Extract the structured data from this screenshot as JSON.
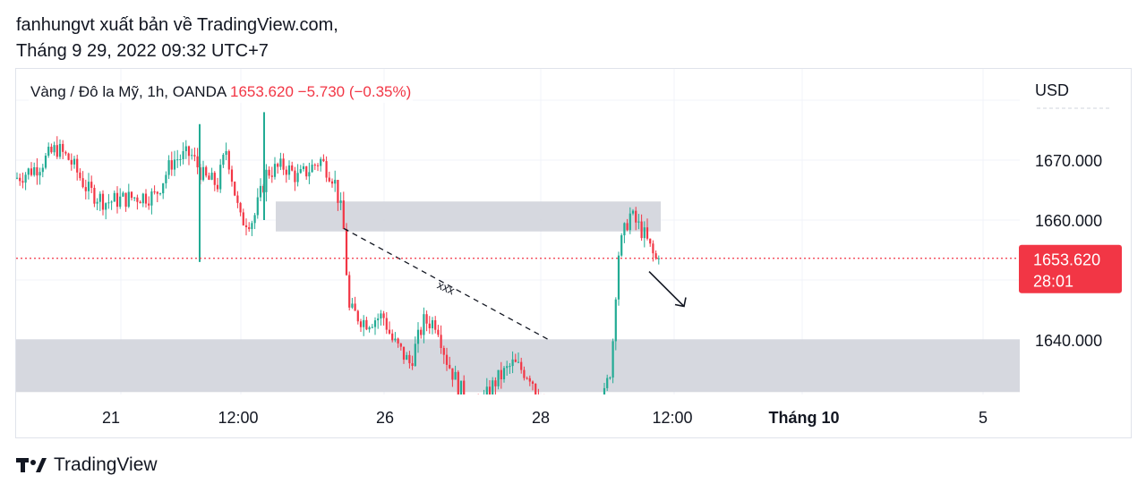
{
  "header": {
    "line1": "fanhungvt xuất bản về TradingView.com,",
    "line2": "Tháng 9 29, 2022 09:32 UTC+7"
  },
  "legend": {
    "symbol": "Vàng / Đô la Mỹ, 1h, OANDA",
    "price": "1653.620",
    "change": "−5.730 (−0.35%)"
  },
  "footer": {
    "brand": "TradingView"
  },
  "colors": {
    "up": "#22ab94",
    "down": "#f23645",
    "zone": "#d1d4dc",
    "price_label": "#f23645"
  },
  "chart_data": {
    "type": "candlestick",
    "currency": "USD",
    "y_ticks": [
      "1670.000",
      "1660.000",
      "1640.000"
    ],
    "x_ticks": [
      "21",
      "12:00",
      "26",
      "28",
      "12:00",
      "Tháng 10",
      "5"
    ],
    "ylim": [
      1630,
      1690
    ],
    "last_price": {
      "label": "1653.620",
      "countdown": "28:01",
      "value": 1653.62
    },
    "zones": [
      {
        "from": 1658.1,
        "to": 1663.1
      },
      {
        "from": 1631.3,
        "to": 1640.1
      }
    ],
    "trendline": {
      "label": "xxx",
      "from": 1658.6,
      "to": 1640.1
    },
    "arrow": {
      "from": 1651.4,
      "to": 1645.6
    }
  }
}
